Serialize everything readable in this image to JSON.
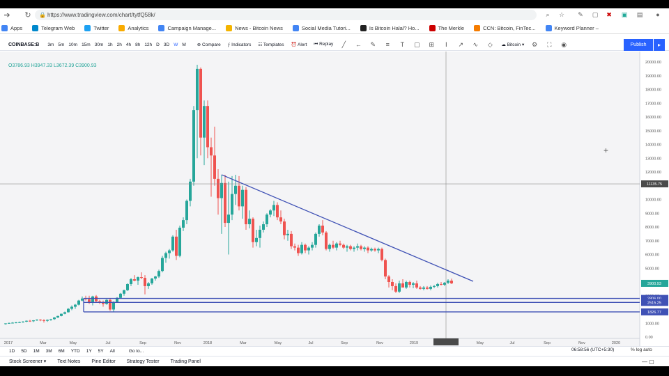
{
  "browser": {
    "url": "https://www.tradingview.com/chart/tytfQ58k/",
    "bookmarks": [
      "Apps",
      "Telegram Web",
      "Twitter",
      "Analytics",
      "Campaign Manage...",
      "News - Bitcoin News",
      "Social Media Tutori...",
      "Is Bitcoin Halal? Ho...",
      "The Merkle",
      "CCN: Bitcoin, FinTec...",
      "Keyword Planner –"
    ],
    "bookmark_colors": [
      "#4285f4",
      "#0088cc",
      "#1da1f2",
      "#f9ab00",
      "#4285f4",
      "#f4b400",
      "#4285f4",
      "#222222",
      "#cc0000",
      "#f57c00",
      "#4285f4"
    ]
  },
  "toolbar": {
    "symbol": "COINBASE:B",
    "timeframes": [
      "3m",
      "5m",
      "10m",
      "15m",
      "30m",
      "1h",
      "2h",
      "4h",
      "8h",
      "12h",
      "D",
      "3D",
      "W",
      "M"
    ],
    "active_timeframe": "W",
    "compare": "Compare",
    "indicators": "Indicators",
    "templates": "Templates",
    "alert": "Alert",
    "replay": "Replay",
    "layout_name": "Bitcoin",
    "publish": "Publish"
  },
  "ohlc": {
    "o": "O3786.93",
    "h": "H3947.33",
    "l": "L3672.39",
    "c": "C3900.93"
  },
  "price_axis": [
    "20000.00",
    "19000.00",
    "18000.00",
    "17000.00",
    "16000.00",
    "15000.00",
    "14000.00",
    "13000.00",
    "12000.00",
    "11135.75",
    "10000.00",
    "9000.00",
    "8000.00",
    "7000.00",
    "6000.00",
    "5000.00",
    "3900.93",
    "3000.00",
    "2806.00",
    "2515.25",
    "1826.77",
    "1000.00",
    "0.00"
  ],
  "time_axis": [
    "2017",
    "Mar",
    "May",
    "Jul",
    "Sep",
    "Nov",
    "2018",
    "Mar",
    "May",
    "Jul",
    "Sep",
    "Nov",
    "2019",
    "04 Mar '19",
    "May",
    "Jul",
    "Sep",
    "Nov",
    "2020"
  ],
  "levels": {
    "crosshair_price": "11135.75",
    "last_price": "3900.93",
    "support_1": "2806.00",
    "support_2": "2515.25",
    "support_3": "1826.77"
  },
  "bottom": {
    "ranges": [
      "1D",
      "5D",
      "1M",
      "3M",
      "6M",
      "YTD",
      "1Y",
      "5Y",
      "All"
    ],
    "goto": "Go to...",
    "clock": "06:58:56 (UTC+5:30)",
    "flags": [
      "%",
      "log",
      "auto"
    ]
  },
  "panels": [
    "Stock Screener",
    "Text Notes",
    "Pine Editor",
    "Strategy Tester",
    "Trading Panel"
  ],
  "colors": {
    "up": "#26a69a",
    "down": "#ef5350",
    "trendline": "#3f51b5",
    "accent": "#2962ff"
  }
}
